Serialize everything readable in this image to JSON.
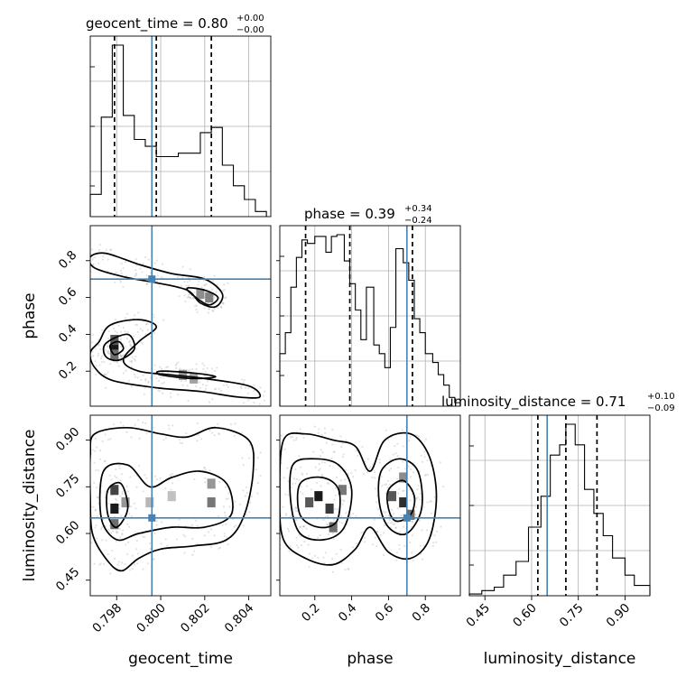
{
  "colors": {
    "truth": "#4682b4",
    "hist": "#000000",
    "grid": "#b0b0b0",
    "points": "#7a7a7a"
  },
  "chart_data": {
    "type": "corner",
    "parameters": [
      {
        "key": "geocent_time",
        "label": "geocent_time",
        "range": [
          0.7968,
          0.805
        ],
        "ticks": [
          0.798,
          0.8,
          0.802,
          0.804
        ],
        "tick_labels": [
          "0.798",
          "0.800",
          "0.802",
          "0.804"
        ]
      },
      {
        "key": "phase",
        "label": "phase",
        "range": [
          0.01,
          0.99
        ],
        "ticks": [
          0.2,
          0.4,
          0.6,
          0.8
        ],
        "tick_labels": [
          "0.2",
          "0.4",
          "0.6",
          "0.8"
        ]
      },
      {
        "key": "luminosity_distance",
        "label": "luminosity_distance",
        "range": [
          0.4,
          0.98
        ],
        "ticks": [
          0.45,
          0.6,
          0.75,
          0.9
        ],
        "tick_labels": [
          "0.45",
          "0.60",
          "0.75",
          "0.90"
        ]
      }
    ],
    "titles": [
      {
        "param": "geocent_time",
        "text": "geocent_time = 0.80",
        "upper": "+0.00",
        "lower": "−0.00"
      },
      {
        "param": "phase",
        "text": "phase = 0.39",
        "upper": "+0.34",
        "lower": "−0.24"
      },
      {
        "param": "luminosity_distance",
        "text": "luminosity_distance = 0.71",
        "upper": "+0.10",
        "lower": "−0.09"
      }
    ],
    "truths": {
      "geocent_time": 0.7996,
      "phase": 0.7,
      "luminosity_distance": 0.65
    },
    "quantiles": {
      "geocent_time": [
        0.7979,
        0.7998,
        0.8023
      ],
      "phase": [
        0.15,
        0.39,
        0.73
      ],
      "luminosity_distance": [
        0.62,
        0.71,
        0.81
      ]
    },
    "histograms": {
      "geocent_time": {
        "edges": [
          0.7968,
          0.7973,
          0.7978,
          0.7983,
          0.7988,
          0.7993,
          0.7998,
          0.8003,
          0.8008,
          0.8013,
          0.8018,
          0.8023,
          0.8028,
          0.8033,
          0.8038,
          0.8043,
          0.8048
        ],
        "counts": [
          0.13,
          0.58,
          1.0,
          0.59,
          0.45,
          0.41,
          0.35,
          0.35,
          0.37,
          0.37,
          0.49,
          0.52,
          0.3,
          0.18,
          0.1,
          0.03
        ]
      },
      "phase": {
        "edges": [
          0.01,
          0.04,
          0.07,
          0.1,
          0.13,
          0.16,
          0.2,
          0.23,
          0.26,
          0.29,
          0.32,
          0.36,
          0.39,
          0.42,
          0.45,
          0.48,
          0.52,
          0.55,
          0.58,
          0.61,
          0.64,
          0.68,
          0.71,
          0.74,
          0.77,
          0.8,
          0.84,
          0.87,
          0.9,
          0.93,
          0.96,
          0.99
        ],
        "counts": [
          0.3,
          0.42,
          0.68,
          0.85,
          0.95,
          0.93,
          0.97,
          0.97,
          0.88,
          0.97,
          0.98,
          0.83,
          0.7,
          0.55,
          0.38,
          0.68,
          0.35,
          0.3,
          0.22,
          0.45,
          0.9,
          0.82,
          0.72,
          0.5,
          0.42,
          0.3,
          0.25,
          0.18,
          0.12,
          0.05,
          0.02
        ]
      },
      "luminosity_distance": {
        "edges": [
          0.4,
          0.44,
          0.48,
          0.51,
          0.55,
          0.59,
          0.63,
          0.66,
          0.69,
          0.71,
          0.74,
          0.77,
          0.8,
          0.83,
          0.86,
          0.9,
          0.93,
          0.98
        ],
        "counts": [
          0.01,
          0.03,
          0.05,
          0.12,
          0.2,
          0.4,
          0.58,
          0.82,
          0.88,
          1.0,
          0.88,
          0.62,
          0.48,
          0.35,
          0.22,
          0.12,
          0.06
        ]
      }
    },
    "panels_2d": [
      {
        "x": "geocent_time",
        "y": "phase",
        "density_cells": [
          {
            "x": 0.7979,
            "y": 0.33,
            "v": 1.0
          },
          {
            "x": 0.7979,
            "y": 0.37,
            "v": 0.7
          },
          {
            "x": 0.7979,
            "y": 0.29,
            "v": 0.6
          },
          {
            "x": 0.8022,
            "y": 0.6,
            "v": 0.5
          },
          {
            "x": 0.8018,
            "y": 0.62,
            "v": 0.45
          },
          {
            "x": 0.801,
            "y": 0.18,
            "v": 0.4
          },
          {
            "x": 0.8015,
            "y": 0.16,
            "v": 0.35
          }
        ],
        "contours": [
          [
            [
              0.7972,
              0.36
            ],
            [
              0.7977,
              0.45
            ],
            [
              0.799,
              0.48
            ],
            [
              0.7998,
              0.44
            ],
            [
              0.799,
              0.36
            ],
            [
              0.7983,
              0.26
            ],
            [
              0.799,
              0.2
            ],
            [
              0.8005,
              0.18
            ],
            [
              0.802,
              0.16
            ],
            [
              0.804,
              0.12
            ],
            [
              0.8045,
              0.06
            ],
            [
              0.8035,
              0.06
            ],
            [
              0.8018,
              0.09
            ],
            [
              0.7998,
              0.11
            ],
            [
              0.7978,
              0.15
            ],
            [
              0.797,
              0.22
            ],
            [
              0.7968,
              0.3
            ]
          ],
          [
            [
              0.7975,
              0.35
            ],
            [
              0.7985,
              0.4
            ],
            [
              0.7988,
              0.32
            ],
            [
              0.7981,
              0.26
            ],
            [
              0.7975,
              0.28
            ]
          ],
          [
            [
              0.7977,
              0.34
            ],
            [
              0.7981,
              0.36
            ],
            [
              0.7983,
              0.32
            ],
            [
              0.7979,
              0.29
            ]
          ],
          [
            [
              0.8,
              0.2
            ],
            [
              0.8015,
              0.19
            ],
            [
              0.8025,
              0.17
            ],
            [
              0.8015,
              0.16
            ],
            [
              0.8,
              0.18
            ]
          ],
          [
            [
              0.7975,
              0.84
            ],
            [
              0.799,
              0.78
            ],
            [
              0.8005,
              0.73
            ],
            [
              0.802,
              0.7
            ],
            [
              0.8028,
              0.62
            ],
            [
              0.8025,
              0.55
            ],
            [
              0.8018,
              0.57
            ],
            [
              0.8012,
              0.64
            ],
            [
              0.7998,
              0.68
            ],
            [
              0.7984,
              0.71
            ],
            [
              0.797,
              0.76
            ],
            [
              0.7968,
              0.82
            ]
          ],
          [
            [
              0.8012,
              0.65
            ],
            [
              0.802,
              0.64
            ],
            [
              0.8026,
              0.6
            ],
            [
              0.8022,
              0.56
            ],
            [
              0.8016,
              0.6
            ]
          ]
        ]
      },
      {
        "x": "geocent_time",
        "y": "luminosity_distance",
        "density_cells": [
          {
            "x": 0.7979,
            "y": 0.68,
            "v": 1.0
          },
          {
            "x": 0.7979,
            "y": 0.74,
            "v": 0.8
          },
          {
            "x": 0.7979,
            "y": 0.63,
            "v": 0.6
          },
          {
            "x": 0.7984,
            "y": 0.7,
            "v": 0.4
          },
          {
            "x": 0.8023,
            "y": 0.7,
            "v": 0.55
          },
          {
            "x": 0.8023,
            "y": 0.76,
            "v": 0.4
          },
          {
            "x": 0.7995,
            "y": 0.7,
            "v": 0.25
          },
          {
            "x": 0.8005,
            "y": 0.72,
            "v": 0.2
          }
        ],
        "contours": [
          [
            [
              0.797,
              0.92
            ],
            [
              0.7985,
              0.94
            ],
            [
              0.8,
              0.92
            ],
            [
              0.8012,
              0.91
            ],
            [
              0.8025,
              0.94
            ],
            [
              0.804,
              0.9
            ],
            [
              0.8042,
              0.8
            ],
            [
              0.8038,
              0.66
            ],
            [
              0.803,
              0.58
            ],
            [
              0.8015,
              0.56
            ],
            [
              0.8,
              0.55
            ],
            [
              0.799,
              0.52
            ],
            [
              0.7982,
              0.48
            ],
            [
              0.7975,
              0.52
            ],
            [
              0.7969,
              0.6
            ],
            [
              0.7968,
              0.72
            ],
            [
              0.7968,
              0.85
            ]
          ],
          [
            [
              0.7974,
              0.8
            ],
            [
              0.7985,
              0.82
            ],
            [
              0.7995,
              0.75
            ],
            [
              0.8005,
              0.78
            ],
            [
              0.8018,
              0.8
            ],
            [
              0.803,
              0.76
            ],
            [
              0.8032,
              0.66
            ],
            [
              0.802,
              0.62
            ],
            [
              0.8005,
              0.62
            ],
            [
              0.799,
              0.6
            ],
            [
              0.798,
              0.58
            ],
            [
              0.7973,
              0.65
            ]
          ],
          [
            [
              0.7976,
              0.74
            ],
            [
              0.7982,
              0.76
            ],
            [
              0.7985,
              0.68
            ],
            [
              0.798,
              0.62
            ],
            [
              0.7976,
              0.66
            ]
          ]
        ]
      },
      {
        "x": "phase",
        "y": "luminosity_distance",
        "density_cells": [
          {
            "x": 0.22,
            "y": 0.72,
            "v": 1.0
          },
          {
            "x": 0.28,
            "y": 0.68,
            "v": 0.85
          },
          {
            "x": 0.17,
            "y": 0.7,
            "v": 0.7
          },
          {
            "x": 0.3,
            "y": 0.62,
            "v": 0.6
          },
          {
            "x": 0.35,
            "y": 0.74,
            "v": 0.55
          },
          {
            "x": 0.68,
            "y": 0.7,
            "v": 0.9
          },
          {
            "x": 0.62,
            "y": 0.72,
            "v": 0.7
          },
          {
            "x": 0.72,
            "y": 0.66,
            "v": 0.6
          },
          {
            "x": 0.68,
            "y": 0.78,
            "v": 0.45
          }
        ],
        "contours": [
          [
            [
              0.03,
              0.9
            ],
            [
              0.15,
              0.92
            ],
            [
              0.3,
              0.9
            ],
            [
              0.42,
              0.88
            ],
            [
              0.5,
              0.8
            ],
            [
              0.58,
              0.9
            ],
            [
              0.72,
              0.92
            ],
            [
              0.82,
              0.85
            ],
            [
              0.86,
              0.72
            ],
            [
              0.82,
              0.58
            ],
            [
              0.72,
              0.52
            ],
            [
              0.6,
              0.54
            ],
            [
              0.5,
              0.62
            ],
            [
              0.42,
              0.55
            ],
            [
              0.3,
              0.5
            ],
            [
              0.15,
              0.52
            ],
            [
              0.03,
              0.58
            ],
            [
              0.01,
              0.72
            ]
          ],
          [
            [
              0.08,
              0.82
            ],
            [
              0.2,
              0.84
            ],
            [
              0.33,
              0.82
            ],
            [
              0.4,
              0.74
            ],
            [
              0.36,
              0.62
            ],
            [
              0.25,
              0.58
            ],
            [
              0.12,
              0.6
            ],
            [
              0.07,
              0.7
            ]
          ],
          [
            [
              0.12,
              0.76
            ],
            [
              0.24,
              0.78
            ],
            [
              0.33,
              0.74
            ],
            [
              0.32,
              0.64
            ],
            [
              0.22,
              0.62
            ],
            [
              0.12,
              0.66
            ]
          ],
          [
            [
              0.56,
              0.8
            ],
            [
              0.66,
              0.84
            ],
            [
              0.76,
              0.8
            ],
            [
              0.78,
              0.68
            ],
            [
              0.7,
              0.6
            ],
            [
              0.6,
              0.62
            ],
            [
              0.55,
              0.7
            ]
          ],
          [
            [
              0.6,
              0.74
            ],
            [
              0.68,
              0.77
            ],
            [
              0.74,
              0.72
            ],
            [
              0.72,
              0.66
            ],
            [
              0.64,
              0.64
            ],
            [
              0.6,
              0.68
            ]
          ]
        ]
      }
    ]
  }
}
